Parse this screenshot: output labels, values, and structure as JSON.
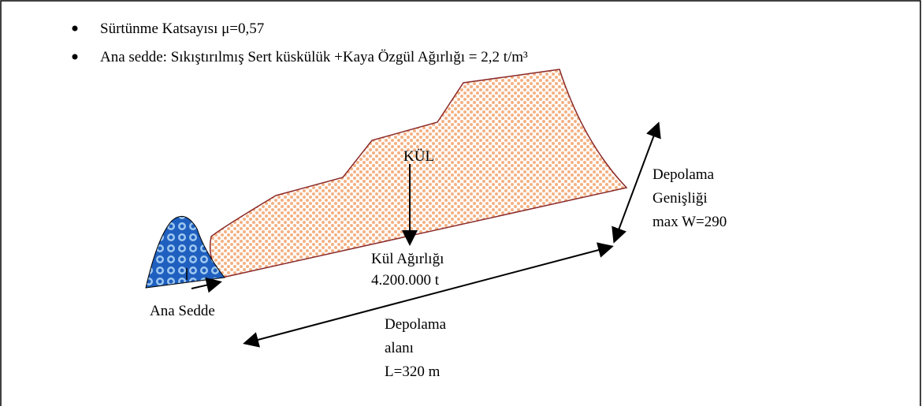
{
  "bullets": [
    "Sürtünme Katsayısı   μ=0,57",
    "Ana sedde: Sıkıştırılmış Sert küskülük +Kaya Özgül Ağırlığı = 2,2 t/m³"
  ],
  "labels": {
    "kul": "KÜL",
    "kul_agirligi": [
      "Kül Ağırlığı",
      "4.200.000 t"
    ],
    "ana_sedde": "Ana  Sedde",
    "depolama_alani": [
      "Depolama",
      "alanı",
      "L=320 m"
    ],
    "depolama_genisligi": [
      "Depolama",
      "Genişliği",
      "max W=290"
    ]
  }
}
